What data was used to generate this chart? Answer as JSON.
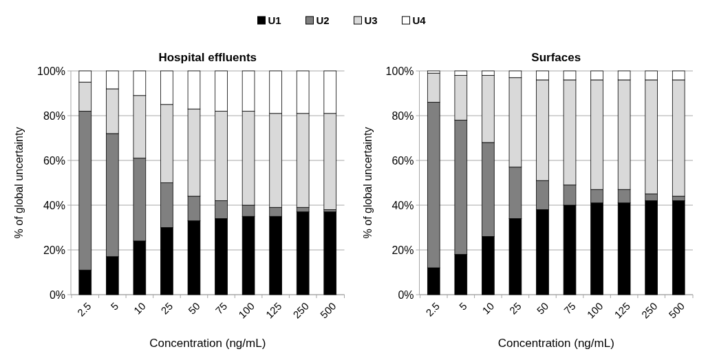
{
  "chart_data": [
    {
      "type": "bar",
      "title": "Hospital effluents",
      "xlabel": "Concentration (ng/mL)",
      "ylabel": "% of global uncertainty",
      "categories": [
        "2.5",
        "5",
        "10",
        "25",
        "50",
        "75",
        "100",
        "125",
        "250",
        "500"
      ],
      "stacked": true,
      "ylim": [
        0,
        100
      ],
      "yticks": [
        {
          "value": 0,
          "label": "0%"
        },
        {
          "value": 20,
          "label": "20%"
        },
        {
          "value": 40,
          "label": "40%"
        },
        {
          "value": 60,
          "label": "60%"
        },
        {
          "value": 80,
          "label": "80%"
        },
        {
          "value": 100,
          "label": "100%"
        }
      ],
      "grid": "y",
      "legend": "top",
      "series": [
        {
          "name": "U1",
          "color": "#000000",
          "values": [
            11,
            17,
            24,
            30,
            33,
            34,
            35,
            35,
            37,
            37
          ]
        },
        {
          "name": "U2",
          "color": "#808080",
          "values": [
            71,
            55,
            37,
            20,
            11,
            8,
            5,
            4,
            2,
            1
          ]
        },
        {
          "name": "U3",
          "color": "#d9d9d9",
          "values": [
            13,
            20,
            28,
            35,
            39,
            40,
            42,
            42,
            42,
            43
          ]
        },
        {
          "name": "U4",
          "color": "#ffffff",
          "values": [
            5,
            8,
            11,
            15,
            17,
            18,
            18,
            19,
            19,
            19
          ]
        }
      ]
    },
    {
      "type": "bar",
      "title": "Surfaces",
      "xlabel": "Concentration (ng/mL)",
      "ylabel": "% of global uncertainty",
      "categories": [
        "2.5",
        "5",
        "10",
        "25",
        "50",
        "75",
        "100",
        "125",
        "250",
        "500"
      ],
      "stacked": true,
      "ylim": [
        0,
        100
      ],
      "yticks": [
        {
          "value": 0,
          "label": "0%"
        },
        {
          "value": 20,
          "label": "20%"
        },
        {
          "value": 40,
          "label": "40%"
        },
        {
          "value": 60,
          "label": "60%"
        },
        {
          "value": 80,
          "label": "80%"
        },
        {
          "value": 100,
          "label": "100%"
        }
      ],
      "grid": "y",
      "legend": "top",
      "series": [
        {
          "name": "U1",
          "color": "#000000",
          "values": [
            12,
            18,
            26,
            34,
            38,
            40,
            41,
            41,
            42,
            42
          ]
        },
        {
          "name": "U2",
          "color": "#808080",
          "values": [
            74,
            60,
            42,
            23,
            13,
            9,
            6,
            6,
            3,
            2
          ]
        },
        {
          "name": "U3",
          "color": "#d9d9d9",
          "values": [
            13,
            20,
            30,
            40,
            45,
            47,
            49,
            49,
            51,
            52
          ]
        },
        {
          "name": "U4",
          "color": "#ffffff",
          "values": [
            1,
            2,
            2,
            3,
            4,
            4,
            4,
            4,
            4,
            4
          ]
        }
      ]
    }
  ]
}
